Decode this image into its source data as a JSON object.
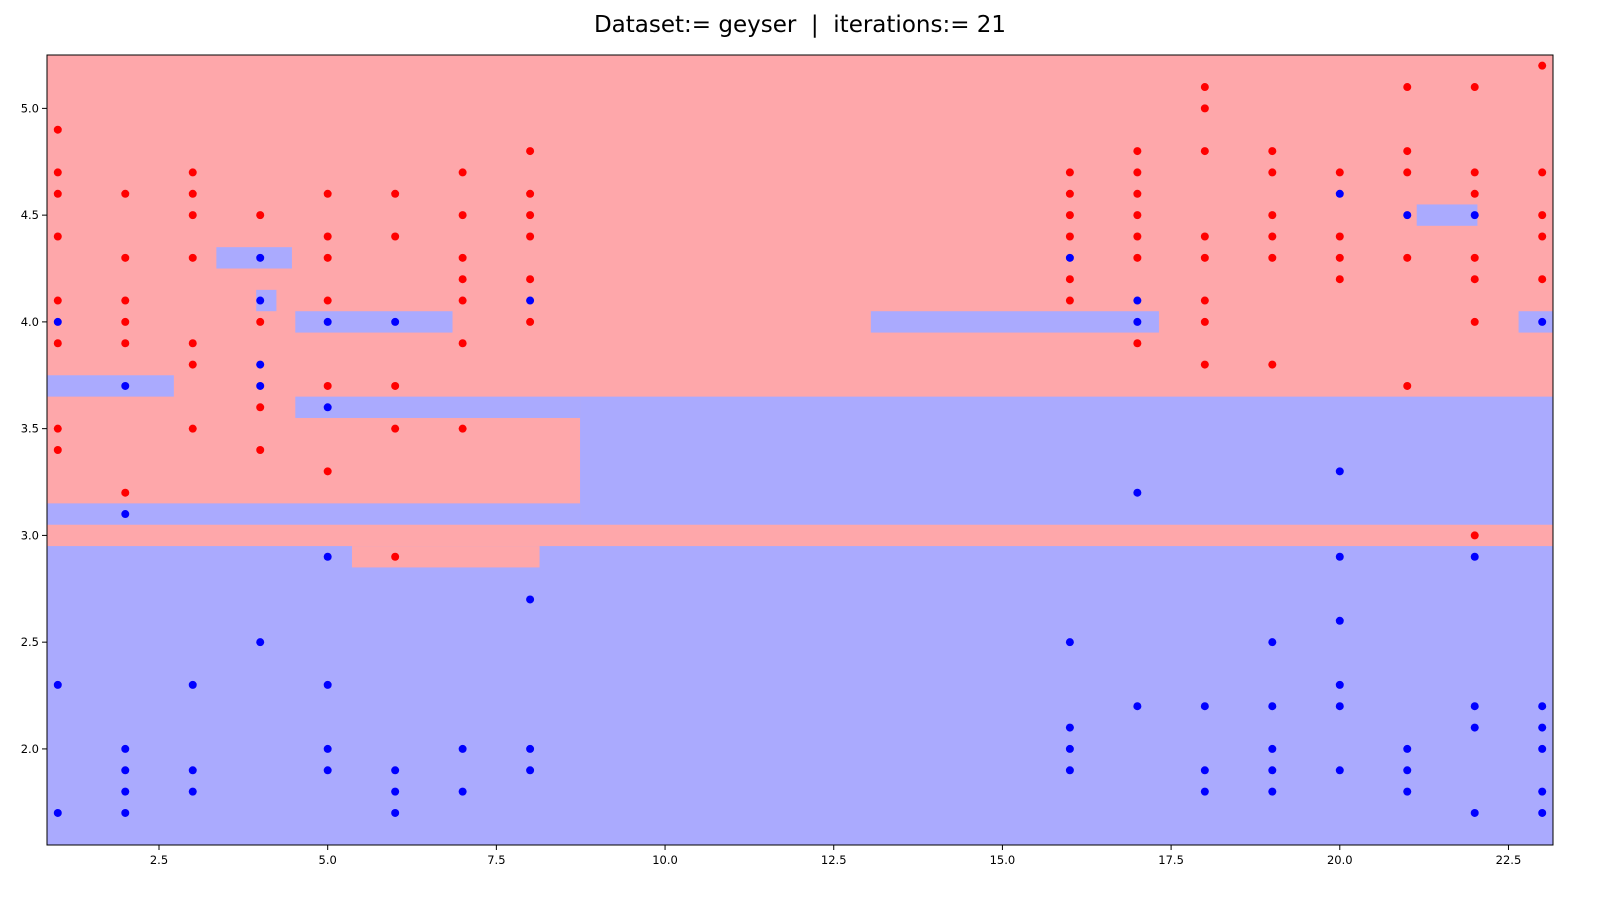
{
  "chart_data": {
    "type": "scatter",
    "title": "Dataset:= geyser  |  iterations:= 21",
    "xlabel": "",
    "ylabel": "",
    "xlim": [
      0.84,
      23.16
    ],
    "ylim": [
      1.55,
      5.25
    ],
    "xticks": [
      2.5,
      5.0,
      7.5,
      10.0,
      12.5,
      15.0,
      17.5,
      20.0,
      22.5
    ],
    "yticks": [
      2.0,
      2.5,
      3.0,
      3.5,
      4.0,
      4.5,
      5.0
    ],
    "grid": false,
    "legend": "none",
    "colors": {
      "red_region": "#fea7aa",
      "blue_region": "#aaaafe",
      "red_point": "#ff0000",
      "blue_point": "#0000ff"
    },
    "regions": [
      {
        "class": "red",
        "x": [
          0.84,
          23.16
        ],
        "y": [
          1.55,
          5.25
        ]
      },
      {
        "class": "blue",
        "x": [
          0.84,
          23.16
        ],
        "y": [
          1.55,
          2.95
        ]
      },
      {
        "class": "blue",
        "x": [
          8.74,
          23.16
        ],
        "y": [
          3.05,
          3.65
        ]
      },
      {
        "class": "blue",
        "x": [
          0.84,
          8.74
        ],
        "y": [
          3.05,
          3.15
        ]
      },
      {
        "class": "blue",
        "x": [
          4.52,
          8.74
        ],
        "y": [
          3.55,
          3.65
        ]
      },
      {
        "class": "red",
        "x": [
          5.36,
          8.14
        ],
        "y": [
          2.85,
          2.95
        ]
      },
      {
        "class": "blue",
        "x": [
          0.84,
          2.72
        ],
        "y": [
          3.65,
          3.75
        ]
      },
      {
        "class": "blue",
        "x": [
          3.35,
          4.47
        ],
        "y": [
          4.25,
          4.35
        ]
      },
      {
        "class": "blue",
        "x": [
          3.94,
          4.24
        ],
        "y": [
          4.05,
          4.15
        ]
      },
      {
        "class": "blue",
        "x": [
          4.52,
          6.85
        ],
        "y": [
          3.95,
          4.05
        ]
      },
      {
        "class": "blue",
        "x": [
          13.05,
          17.32
        ],
        "y": [
          3.95,
          4.05
        ]
      },
      {
        "class": "blue",
        "x": [
          21.14,
          22.04
        ],
        "y": [
          4.45,
          4.55
        ]
      },
      {
        "class": "blue",
        "x": [
          22.65,
          23.16
        ],
        "y": [
          3.95,
          4.05
        ]
      }
    ],
    "series": [
      {
        "class": "red",
        "points": [
          [
            1,
            4.9
          ],
          [
            1,
            4.7
          ],
          [
            1,
            4.6
          ],
          [
            1,
            4.4
          ],
          [
            1,
            4.1
          ],
          [
            1,
            3.9
          ],
          [
            1,
            3.5
          ],
          [
            1,
            3.4
          ],
          [
            2,
            4.6
          ],
          [
            2,
            4.3
          ],
          [
            2,
            4.1
          ],
          [
            2,
            4.0
          ],
          [
            2,
            3.9
          ],
          [
            2,
            3.2
          ],
          [
            3,
            4.7
          ],
          [
            3,
            4.6
          ],
          [
            3,
            4.5
          ],
          [
            3,
            4.3
          ],
          [
            3,
            3.9
          ],
          [
            3,
            3.8
          ],
          [
            3,
            3.5
          ],
          [
            4,
            4.5
          ],
          [
            4,
            4.0
          ],
          [
            4,
            3.6
          ],
          [
            4,
            3.4
          ],
          [
            5,
            4.6
          ],
          [
            5,
            4.4
          ],
          [
            5,
            4.3
          ],
          [
            5,
            4.1
          ],
          [
            5,
            3.7
          ],
          [
            5,
            3.3
          ],
          [
            6,
            4.6
          ],
          [
            6,
            4.4
          ],
          [
            6,
            3.7
          ],
          [
            6,
            3.5
          ],
          [
            6,
            2.9
          ],
          [
            7,
            4.7
          ],
          [
            7,
            4.5
          ],
          [
            7,
            4.3
          ],
          [
            7,
            4.2
          ],
          [
            7,
            4.1
          ],
          [
            7,
            3.9
          ],
          [
            7,
            3.5
          ],
          [
            8,
            4.8
          ],
          [
            8,
            4.6
          ],
          [
            8,
            4.5
          ],
          [
            8,
            4.4
          ],
          [
            8,
            4.2
          ],
          [
            8,
            4.0
          ],
          [
            16,
            4.7
          ],
          [
            16,
            4.6
          ],
          [
            16,
            4.5
          ],
          [
            16,
            4.4
          ],
          [
            16,
            4.2
          ],
          [
            16,
            4.1
          ],
          [
            17,
            4.8
          ],
          [
            17,
            4.7
          ],
          [
            17,
            4.6
          ],
          [
            17,
            4.5
          ],
          [
            17,
            4.4
          ],
          [
            17,
            4.3
          ],
          [
            17,
            3.9
          ],
          [
            18,
            5.1
          ],
          [
            18,
            5.0
          ],
          [
            18,
            4.8
          ],
          [
            18,
            4.4
          ],
          [
            18,
            4.3
          ],
          [
            18,
            4.1
          ],
          [
            18,
            4.0
          ],
          [
            18,
            3.8
          ],
          [
            19,
            4.8
          ],
          [
            19,
            4.7
          ],
          [
            19,
            4.5
          ],
          [
            19,
            4.4
          ],
          [
            19,
            4.3
          ],
          [
            19,
            3.8
          ],
          [
            20,
            4.7
          ],
          [
            20,
            4.4
          ],
          [
            20,
            4.3
          ],
          [
            20,
            4.2
          ],
          [
            21,
            5.1
          ],
          [
            21,
            4.8
          ],
          [
            21,
            4.7
          ],
          [
            21,
            4.3
          ],
          [
            21,
            3.7
          ],
          [
            22,
            5.1
          ],
          [
            22,
            4.7
          ],
          [
            22,
            4.6
          ],
          [
            22,
            4.3
          ],
          [
            22,
            4.2
          ],
          [
            22,
            4.0
          ],
          [
            22,
            3.0
          ],
          [
            23,
            5.2
          ],
          [
            23,
            4.7
          ],
          [
            23,
            4.5
          ],
          [
            23,
            4.4
          ],
          [
            23,
            4.2
          ]
        ]
      },
      {
        "class": "blue",
        "points": [
          [
            1,
            4.0
          ],
          [
            1,
            2.3
          ],
          [
            1,
            1.7
          ],
          [
            2,
            3.7
          ],
          [
            2,
            3.1
          ],
          [
            2,
            2.0
          ],
          [
            2,
            1.9
          ],
          [
            2,
            1.8
          ],
          [
            2,
            1.7
          ],
          [
            3,
            2.3
          ],
          [
            3,
            1.9
          ],
          [
            3,
            1.8
          ],
          [
            4,
            4.3
          ],
          [
            4,
            4.1
          ],
          [
            4,
            3.8
          ],
          [
            4,
            3.7
          ],
          [
            4,
            2.5
          ],
          [
            5,
            4.0
          ],
          [
            5,
            3.6
          ],
          [
            5,
            2.9
          ],
          [
            5,
            2.3
          ],
          [
            5,
            2.0
          ],
          [
            5,
            1.9
          ],
          [
            6,
            4.0
          ],
          [
            6,
            1.9
          ],
          [
            6,
            1.8
          ],
          [
            6,
            1.7
          ],
          [
            7,
            2.0
          ],
          [
            7,
            1.8
          ],
          [
            8,
            4.1
          ],
          [
            8,
            2.7
          ],
          [
            8,
            2.0
          ],
          [
            8,
            1.9
          ],
          [
            16,
            4.3
          ],
          [
            16,
            2.5
          ],
          [
            16,
            2.1
          ],
          [
            16,
            2.0
          ],
          [
            16,
            1.9
          ],
          [
            17,
            4.1
          ],
          [
            17,
            4.0
          ],
          [
            17,
            3.2
          ],
          [
            17,
            2.2
          ],
          [
            18,
            2.2
          ],
          [
            18,
            1.9
          ],
          [
            18,
            1.8
          ],
          [
            19,
            2.5
          ],
          [
            19,
            2.2
          ],
          [
            19,
            2.0
          ],
          [
            19,
            1.9
          ],
          [
            19,
            1.8
          ],
          [
            20,
            4.6
          ],
          [
            20,
            3.3
          ],
          [
            20,
            2.9
          ],
          [
            20,
            2.6
          ],
          [
            20,
            2.3
          ],
          [
            20,
            2.2
          ],
          [
            20,
            1.9
          ],
          [
            21,
            4.5
          ],
          [
            21,
            2.0
          ],
          [
            21,
            1.9
          ],
          [
            21,
            1.8
          ],
          [
            22,
            4.5
          ],
          [
            22,
            2.9
          ],
          [
            22,
            2.2
          ],
          [
            22,
            2.1
          ],
          [
            22,
            1.7
          ],
          [
            23,
            4.0
          ],
          [
            23,
            2.2
          ],
          [
            23,
            2.1
          ],
          [
            23,
            2.0
          ],
          [
            23,
            1.8
          ],
          [
            23,
            1.7
          ]
        ]
      }
    ]
  }
}
